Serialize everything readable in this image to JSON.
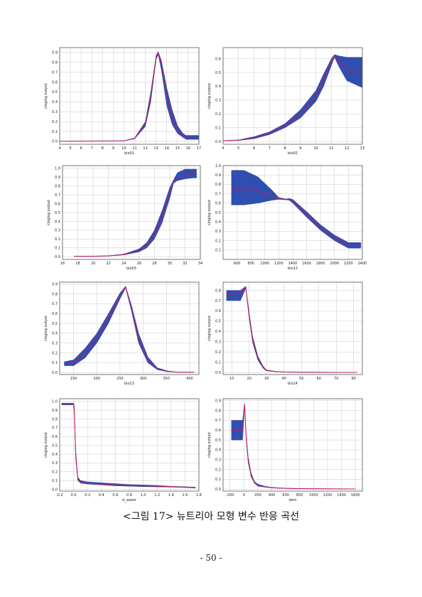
{
  "caption": "<그림 17> 뉴트리아 모형 변수 반응 곡선",
  "page_number": "- 50 -",
  "chart_data": [
    {
      "type": "area",
      "xlabel": "bio01",
      "ylabel": "cloglog output",
      "xlim": [
        4,
        17
      ],
      "ylim": [
        -0.03,
        0.95
      ],
      "xticks": [
        4,
        5,
        6,
        7,
        8,
        9,
        10,
        11,
        12,
        13,
        14,
        15,
        16,
        17
      ],
      "yticks": [
        0,
        0.1,
        0.2,
        0.3,
        0.4,
        0.5,
        0.6,
        0.7,
        0.8,
        0.9
      ],
      "x": [
        4.0,
        10.0,
        11.0,
        12.0,
        12.5,
        13.0,
        13.2,
        13.5,
        14.0,
        14.5,
        15.0,
        15.5,
        15.8,
        16.0,
        17.0
      ],
      "mean": [
        0.0,
        0.005,
        0.03,
        0.18,
        0.45,
        0.85,
        0.9,
        0.78,
        0.45,
        0.24,
        0.12,
        0.06,
        0.04,
        0.04,
        0.04
      ],
      "lower": [
        0.0,
        0.005,
        0.025,
        0.15,
        0.4,
        0.83,
        0.88,
        0.72,
        0.36,
        0.17,
        0.08,
        0.04,
        0.02,
        0.02,
        0.02
      ],
      "upper": [
        0.0,
        0.006,
        0.035,
        0.2,
        0.5,
        0.87,
        0.91,
        0.82,
        0.54,
        0.32,
        0.16,
        0.08,
        0.06,
        0.06,
        0.06
      ]
    },
    {
      "type": "area",
      "xlabel": "bio02",
      "ylabel": "cloglog output",
      "xlim": [
        4,
        13
      ],
      "ylim": [
        -0.02,
        0.68
      ],
      "xticks": [
        4,
        5,
        6,
        7,
        8,
        9,
        10,
        11,
        12,
        13
      ],
      "yticks": [
        0,
        0.1,
        0.2,
        0.3,
        0.4,
        0.5,
        0.6
      ],
      "x": [
        4.0,
        5.0,
        6.0,
        7.0,
        8.0,
        9.0,
        10.0,
        10.5,
        11.0,
        11.2,
        11.5,
        12.0,
        13.0
      ],
      "mean": [
        0.005,
        0.01,
        0.03,
        0.06,
        0.12,
        0.2,
        0.33,
        0.45,
        0.58,
        0.62,
        0.58,
        0.52,
        0.5
      ],
      "lower": [
        0.004,
        0.008,
        0.02,
        0.05,
        0.1,
        0.17,
        0.29,
        0.4,
        0.55,
        0.61,
        0.54,
        0.44,
        0.39
      ],
      "upper": [
        0.006,
        0.012,
        0.035,
        0.07,
        0.13,
        0.23,
        0.37,
        0.49,
        0.6,
        0.63,
        0.62,
        0.61,
        0.61
      ]
    },
    {
      "type": "area",
      "xlabel": "bio03",
      "ylabel": "cloglog output",
      "xlim": [
        16,
        34
      ],
      "ylim": [
        -0.03,
        1.03
      ],
      "xticks": [
        16,
        18,
        20,
        22,
        24,
        26,
        28,
        30,
        32,
        34
      ],
      "yticks": [
        0,
        0.1,
        0.2,
        0.3,
        0.4,
        0.5,
        0.6,
        0.7,
        0.8,
        0.9,
        1.0
      ],
      "x": [
        17.5,
        20.0,
        22.0,
        24.0,
        26.0,
        27.0,
        28.0,
        29.0,
        30.0,
        30.5,
        31.0,
        32.0,
        33.0,
        33.5
      ],
      "mean": [
        0.005,
        0.006,
        0.01,
        0.025,
        0.07,
        0.13,
        0.25,
        0.45,
        0.72,
        0.85,
        0.88,
        0.92,
        0.95,
        0.95
      ],
      "lower": [
        0.004,
        0.005,
        0.008,
        0.02,
        0.055,
        0.1,
        0.2,
        0.38,
        0.66,
        0.83,
        0.86,
        0.88,
        0.89,
        0.89
      ],
      "upper": [
        0.006,
        0.007,
        0.012,
        0.03,
        0.09,
        0.16,
        0.3,
        0.52,
        0.78,
        0.87,
        0.95,
        0.99,
        0.99,
        0.99
      ]
    },
    {
      "type": "area",
      "xlabel": "bio12",
      "ylabel": "cloglog output",
      "xlim": [
        400,
        2400
      ],
      "ylim": [
        0,
        1.0
      ],
      "xticks": [
        600,
        800,
        1000,
        1200,
        1400,
        1600,
        1800,
        2000,
        2200,
        2400
      ],
      "yticks": [
        0.1,
        0.2,
        0.3,
        0.4,
        0.5,
        0.6,
        0.7,
        0.8,
        0.9,
        1.0
      ],
      "x": [
        520,
        700,
        900,
        1100,
        1200,
        1300,
        1350,
        1400,
        1600,
        1800,
        2000,
        2200,
        2380
      ],
      "mean": [
        0.76,
        0.76,
        0.73,
        0.68,
        0.65,
        0.64,
        0.64,
        0.62,
        0.48,
        0.34,
        0.23,
        0.15,
        0.15
      ],
      "lower": [
        0.58,
        0.58,
        0.6,
        0.63,
        0.64,
        0.635,
        0.63,
        0.6,
        0.45,
        0.31,
        0.2,
        0.12,
        0.12
      ],
      "upper": [
        0.95,
        0.95,
        0.88,
        0.74,
        0.66,
        0.645,
        0.65,
        0.64,
        0.51,
        0.37,
        0.26,
        0.18,
        0.18
      ]
    },
    {
      "type": "area",
      "xlabel": "bio13",
      "ylabel": "cloglog output",
      "xlim": [
        120,
        420
      ],
      "ylim": [
        -0.02,
        0.92
      ],
      "xticks": [
        150,
        200,
        250,
        300,
        350,
        400
      ],
      "yticks": [
        0,
        0.1,
        0.2,
        0.3,
        0.4,
        0.5,
        0.6,
        0.7,
        0.8,
        0.9
      ],
      "x": [
        130,
        150,
        175,
        200,
        225,
        250,
        262,
        275,
        290,
        310,
        330,
        350,
        370,
        410
      ],
      "mean": [
        0.09,
        0.1,
        0.2,
        0.35,
        0.55,
        0.78,
        0.87,
        0.65,
        0.35,
        0.13,
        0.04,
        0.015,
        0.005,
        0.003
      ],
      "lower": [
        0.07,
        0.07,
        0.15,
        0.3,
        0.5,
        0.75,
        0.86,
        0.62,
        0.3,
        0.1,
        0.03,
        0.01,
        0.004,
        0.002
      ],
      "upper": [
        0.11,
        0.13,
        0.25,
        0.4,
        0.6,
        0.81,
        0.88,
        0.68,
        0.4,
        0.16,
        0.05,
        0.02,
        0.006,
        0.004
      ]
    },
    {
      "type": "area",
      "xlabel": "bio14",
      "ylabel": "cloglog output",
      "xlim": [
        5,
        85
      ],
      "ylim": [
        -0.02,
        0.88
      ],
      "xticks": [
        10,
        20,
        30,
        40,
        50,
        60,
        70,
        80
      ],
      "yticks": [
        0,
        0.1,
        0.2,
        0.3,
        0.4,
        0.5,
        0.6,
        0.7,
        0.8
      ],
      "x": [
        7,
        15,
        18,
        20,
        22,
        25,
        28,
        30,
        35,
        40,
        50,
        60,
        70,
        82
      ],
      "mean": [
        0.75,
        0.78,
        0.83,
        0.55,
        0.32,
        0.14,
        0.05,
        0.02,
        0.01,
        0.005,
        0.003,
        0.002,
        0.001,
        0.001
      ],
      "lower": [
        0.7,
        0.7,
        0.82,
        0.52,
        0.29,
        0.12,
        0.04,
        0.015,
        0.008,
        0.004,
        0.002,
        0.001,
        0.001,
        0.001
      ],
      "upper": [
        0.8,
        0.8,
        0.84,
        0.58,
        0.35,
        0.16,
        0.06,
        0.025,
        0.012,
        0.006,
        0.004,
        0.003,
        0.002,
        0.002
      ]
    },
    {
      "type": "area",
      "xlabel": "d_water",
      "ylabel": "cloglog output",
      "xlim": [
        -0.2,
        1.8
      ],
      "ylim": [
        -0.02,
        1.03
      ],
      "xticks": [
        -0.2,
        0,
        0.2,
        0.4,
        0.6,
        0.8,
        1.0,
        1.2,
        1.4,
        1.6,
        1.8
      ],
      "xticklabels": [
        "-0.2",
        "0.0",
        "0.2",
        "0.4",
        "0.6",
        "0.8",
        "1.0",
        "1.2",
        "1.4",
        "1.6",
        "1.8"
      ],
      "yticks": [
        0,
        0.1,
        0.2,
        0.3,
        0.4,
        0.5,
        0.6,
        0.7,
        0.8,
        0.9,
        1.0
      ],
      "x": [
        -0.17,
        0.0,
        0.01,
        0.03,
        0.06,
        0.1,
        0.2,
        0.4,
        0.6,
        0.8,
        1.0,
        1.2,
        1.4,
        1.6,
        1.75
      ],
      "mean": [
        0.97,
        0.97,
        0.9,
        0.4,
        0.12,
        0.08,
        0.07,
        0.06,
        0.05,
        0.045,
        0.04,
        0.035,
        0.03,
        0.025,
        0.02
      ],
      "lower": [
        0.96,
        0.96,
        0.85,
        0.35,
        0.1,
        0.07,
        0.06,
        0.05,
        0.04,
        0.035,
        0.03,
        0.028,
        0.025,
        0.02,
        0.015
      ],
      "upper": [
        0.98,
        0.98,
        0.95,
        0.45,
        0.14,
        0.1,
        0.085,
        0.075,
        0.065,
        0.055,
        0.05,
        0.045,
        0.035,
        0.03,
        0.025
      ]
    },
    {
      "type": "area",
      "xlabel": "dem",
      "ylabel": "cloglog output",
      "xlim": [
        -300,
        1700
      ],
      "ylim": [
        -0.02,
        0.92
      ],
      "xticks": [
        -200,
        0,
        200,
        400,
        600,
        800,
        1000,
        1200,
        1400,
        1600
      ],
      "yticks": [
        0,
        0.1,
        0.2,
        0.3,
        0.4,
        0.5,
        0.6,
        0.7,
        0.8,
        0.9
      ],
      "x": [
        -180,
        -20,
        0,
        10,
        30,
        60,
        100,
        150,
        200,
        300,
        400,
        600,
        800,
        1200,
        1600
      ],
      "mean": [
        0.6,
        0.6,
        0.78,
        0.86,
        0.55,
        0.3,
        0.15,
        0.07,
        0.04,
        0.025,
        0.015,
        0.008,
        0.005,
        0.003,
        0.002
      ],
      "lower": [
        0.5,
        0.5,
        0.74,
        0.85,
        0.52,
        0.27,
        0.13,
        0.06,
        0.03,
        0.02,
        0.012,
        0.006,
        0.004,
        0.002,
        0.001
      ],
      "upper": [
        0.7,
        0.7,
        0.82,
        0.87,
        0.58,
        0.33,
        0.17,
        0.08,
        0.05,
        0.03,
        0.018,
        0.01,
        0.006,
        0.004,
        0.003
      ]
    }
  ]
}
